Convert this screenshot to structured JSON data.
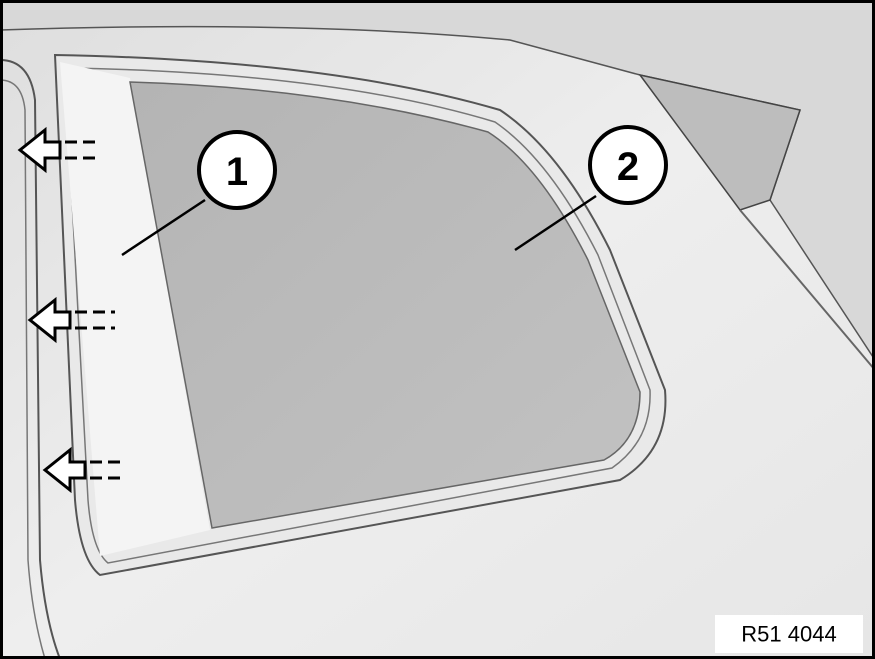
{
  "callouts": [
    {
      "label": "1"
    },
    {
      "label": "2"
    }
  ],
  "figure_id": "R51 4044"
}
